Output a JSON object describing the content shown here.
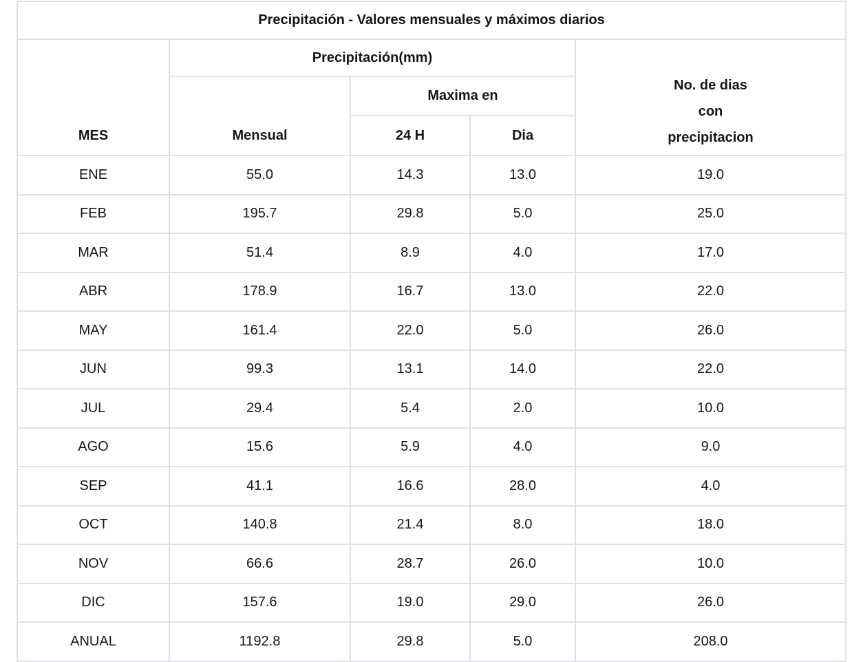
{
  "title": "Precipitación - Valores mensuales y máximos diarios",
  "header": {
    "mes_label": "MES",
    "precipitation_group_label": "Precipitación(mm)",
    "mensual_label": "Mensual",
    "maxima_group_label": "Maxima en",
    "hours24_label": "24 H",
    "dia_label": "Dia",
    "dias_lines": [
      "No. de dias",
      "con",
      "precipitacion"
    ]
  },
  "colors": {
    "border": "#dde0e4",
    "text": "#141619",
    "background": "#ffffff"
  },
  "chart_data": {
    "type": "table",
    "title": "Precipitación - Valores mensuales y máximos diarios",
    "columns": [
      "MES",
      "Mensual",
      "24 H",
      "Dia",
      "No. de dias con precipitacion"
    ],
    "categories": [
      "ENE",
      "FEB",
      "MAR",
      "ABR",
      "MAY",
      "JUN",
      "JUL",
      "AGO",
      "SEP",
      "OCT",
      "NOV",
      "DIC",
      "ANUAL"
    ],
    "series": [
      {
        "name": "Precipitación mensual (mm)",
        "values": [
          55.0,
          195.7,
          51.4,
          178.9,
          161.4,
          99.3,
          29.4,
          15.6,
          41.1,
          140.8,
          66.6,
          157.6,
          1192.8
        ]
      },
      {
        "name": "Precipitación máxima en 24 H (mm)",
        "values": [
          14.3,
          29.8,
          8.9,
          16.7,
          22.0,
          13.1,
          5.4,
          5.9,
          16.6,
          21.4,
          28.7,
          19.0,
          29.8
        ]
      },
      {
        "name": "Dia de la máxima",
        "values": [
          13.0,
          5.0,
          4.0,
          13.0,
          5.0,
          14.0,
          2.0,
          4.0,
          28.0,
          8.0,
          26.0,
          29.0,
          5.0
        ]
      },
      {
        "name": "No. de dias con precipitacion",
        "values": [
          19.0,
          25.0,
          17.0,
          22.0,
          26.0,
          22.0,
          10.0,
          9.0,
          4.0,
          18.0,
          10.0,
          26.0,
          208.0
        ]
      }
    ]
  }
}
